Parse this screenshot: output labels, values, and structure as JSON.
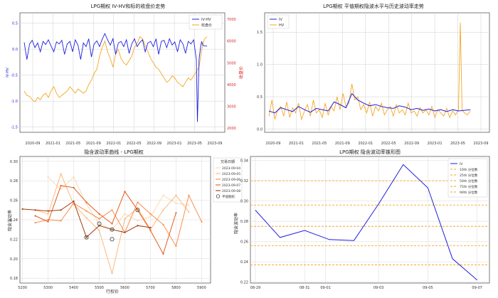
{
  "figure": {
    "background": "#ffffff"
  },
  "chart_data": [
    {
      "type": "line",
      "title": "LPG期权 IV-HV和标的收盘价走势",
      "xlabel": "",
      "ylabel": "IV-HV",
      "y2label": "收盘价",
      "x_ticks": [
        "2020-09",
        "2021-01",
        "2021-05",
        "2021-09",
        "2022-01",
        "2022-05",
        "2022-09",
        "2023-01",
        "2023-05",
        "2023-09"
      ],
      "y_ticks": [
        "-1.5",
        "-1.0",
        "-0.5",
        "0.0",
        "0.5"
      ],
      "y2_ticks": [
        "2000",
        "3000",
        "4000",
        "5000",
        "6000",
        "7000"
      ],
      "ylim": [
        -1.6,
        0.7
      ],
      "y2lim": [
        1800,
        7300
      ],
      "x_range": [
        0,
        36.5
      ],
      "grid": true,
      "legend_position": "top-right",
      "series": [
        {
          "name": "IV-HV",
          "axis": "left",
          "color": "#1f1fe0",
          "x": [
            0.0,
            0.5,
            1.0,
            1.5,
            2.0,
            2.5,
            3.0,
            3.5,
            4.0,
            4.5,
            5.0,
            5.5,
            6.0,
            6.5,
            7.0,
            7.5,
            8.0,
            8.5,
            9.0,
            9.5,
            10.0,
            10.5,
            11.0,
            11.5,
            12.0,
            12.5,
            13.0,
            13.5,
            14.0,
            14.5,
            15.0,
            15.5,
            16.0,
            16.5,
            17.0,
            17.5,
            18.0,
            18.5,
            19.0,
            19.5,
            20.0,
            20.5,
            21.0,
            21.5,
            22.0,
            22.5,
            23.0,
            23.5,
            24.0,
            24.5,
            25.0,
            25.5,
            26.0,
            26.5,
            27.0,
            27.5,
            28.0,
            28.5,
            29.0,
            29.5,
            30.0,
            30.5,
            31.0,
            31.5,
            32.0,
            32.2,
            32.5,
            32.8,
            33.0,
            33.2,
            33.5,
            34.0
          ],
          "values": [
            0.13,
            -0.2,
            0.1,
            0.17,
            0.03,
            0.12,
            -0.05,
            0.15,
            0.09,
            0.18,
            0.06,
            -0.05,
            0.14,
            0.1,
            0.17,
            -0.1,
            0.1,
            0.15,
            -0.05,
            0.18,
            0.08,
            -0.2,
            0.12,
            0.05,
            0.2,
            -0.15,
            0.1,
            0.16,
            0.05,
            0.19,
            0.3,
            0.18,
            0.08,
            0.2,
            -0.1,
            0.12,
            0.15,
            0.05,
            0.18,
            -0.08,
            0.1,
            0.2,
            0.05,
            0.13,
            0.18,
            -0.05,
            0.12,
            0.15,
            0.05,
            0.2,
            -0.1,
            0.15,
            0.17,
            0.03,
            0.2,
            0.08,
            0.14,
            -0.05,
            0.18,
            0.1,
            -0.08,
            0.15,
            0.1,
            0.18,
            -0.2,
            -1.4,
            -0.2,
            0.05,
            0.15,
            0.08,
            0.06,
            0.06
          ]
        },
        {
          "name": "收盘价",
          "axis": "right",
          "color": "#f5a623",
          "x": [
            0.0,
            0.5,
            1.0,
            1.5,
            2.0,
            2.5,
            3.0,
            3.5,
            4.0,
            4.5,
            5.0,
            5.5,
            6.0,
            6.5,
            7.0,
            7.5,
            8.0,
            8.5,
            9.0,
            9.5,
            10.0,
            10.5,
            11.0,
            11.5,
            12.0,
            12.5,
            13.0,
            13.5,
            14.0,
            14.5,
            15.0,
            15.5,
            16.0,
            16.5,
            17.0,
            17.5,
            18.0,
            18.5,
            19.0,
            19.5,
            20.0,
            20.5,
            21.0,
            21.5,
            22.0,
            22.5,
            23.0,
            23.5,
            24.0,
            24.5,
            25.0,
            25.5,
            26.0,
            26.5,
            27.0,
            27.5,
            28.0,
            28.5,
            29.0,
            29.5,
            30.0,
            30.5,
            31.0,
            31.5,
            32.0,
            32.5,
            33.0,
            33.5,
            34.0
          ],
          "values": [
            3700,
            3500,
            3450,
            3300,
            3200,
            3400,
            3300,
            3500,
            3600,
            3400,
            3700,
            3900,
            3600,
            3400,
            3500,
            3600,
            3700,
            3900,
            3750,
            3600,
            3800,
            3700,
            3600,
            3700,
            4000,
            4200,
            4500,
            4700,
            5300,
            5700,
            6000,
            5500,
            5200,
            4800,
            5400,
            5600,
            5200,
            5000,
            4900,
            5100,
            5300,
            5700,
            5900,
            6200,
            6100,
            5800,
            5500,
            5200,
            5000,
            4800,
            4700,
            4500,
            4300,
            4100,
            4200,
            4400,
            4300,
            4100,
            4000,
            3900,
            4100,
            4300,
            4200,
            4400,
            4600,
            4800,
            5600,
            6100,
            6200
          ]
        }
      ]
    },
    {
      "type": "line",
      "title": "LPG期权 平值期权隐波水平与历史波动率走势",
      "xlabel": "",
      "ylabel": "",
      "x_ticks": [
        "2020-09",
        "2021-01",
        "2021-05",
        "2021-09",
        "2022-01",
        "2022-05",
        "2022-09",
        "2023-01",
        "2023-05",
        "2023-09"
      ],
      "y_ticks": [
        "0.0",
        "0.5",
        "1.0",
        "1.5"
      ],
      "ylim": [
        -0.05,
        1.8
      ],
      "x_range": [
        0,
        36.5
      ],
      "grid": true,
      "legend_position": "top-left",
      "series": [
        {
          "name": "IV",
          "color": "#1f1fe0",
          "x": [
            0,
            1,
            2,
            3,
            4,
            5,
            6,
            7,
            8,
            9,
            10,
            11,
            12,
            13,
            14,
            15,
            16,
            17,
            18,
            19,
            20,
            21,
            22,
            23,
            24,
            25,
            26,
            27,
            28,
            29,
            30,
            31,
            32,
            33,
            34
          ],
          "values": [
            0.28,
            0.25,
            0.33,
            0.3,
            0.27,
            0.35,
            0.3,
            0.26,
            0.32,
            0.3,
            0.28,
            0.42,
            0.38,
            0.33,
            0.55,
            0.45,
            0.4,
            0.36,
            0.38,
            0.35,
            0.33,
            0.32,
            0.36,
            0.34,
            0.3,
            0.32,
            0.29,
            0.31,
            0.28,
            0.3,
            0.27,
            0.3,
            0.28,
            0.29,
            0.3
          ]
        },
        {
          "name": "HV",
          "color": "#f5a623",
          "x": [
            0,
            0.5,
            1,
            1.5,
            2,
            2.5,
            3,
            3.5,
            4,
            4.5,
            5,
            5.5,
            6,
            6.5,
            7,
            7.5,
            8,
            8.5,
            9,
            9.5,
            10,
            10.5,
            11,
            11.5,
            12,
            12.5,
            13,
            13.5,
            14,
            14.5,
            15,
            15.5,
            16,
            16.5,
            17,
            17.5,
            18,
            18.5,
            19,
            19.5,
            20,
            20.5,
            21,
            21.5,
            22,
            22.5,
            23,
            23.5,
            24,
            24.5,
            25,
            25.5,
            26,
            26.5,
            27,
            27.5,
            28,
            28.5,
            29,
            29.5,
            30,
            30.5,
            31,
            31.5,
            32,
            32.3,
            32.6,
            33,
            33.5,
            34
          ],
          "values": [
            0.2,
            0.45,
            0.15,
            0.3,
            0.35,
            0.2,
            0.42,
            0.18,
            0.33,
            0.25,
            0.4,
            0.15,
            0.28,
            0.38,
            0.2,
            0.45,
            0.25,
            0.3,
            0.18,
            0.4,
            0.22,
            0.35,
            0.28,
            0.5,
            0.3,
            0.55,
            0.35,
            0.4,
            0.7,
            0.45,
            0.5,
            0.3,
            0.38,
            0.25,
            0.42,
            0.2,
            0.35,
            0.28,
            0.4,
            0.22,
            0.3,
            0.35,
            0.2,
            0.38,
            0.25,
            0.3,
            0.22,
            0.4,
            0.25,
            0.28,
            0.2,
            0.33,
            0.25,
            0.3,
            0.22,
            0.35,
            0.18,
            0.3,
            0.25,
            0.2,
            0.32,
            0.18,
            0.28,
            0.22,
            0.3,
            1.65,
            0.3,
            0.25,
            0.22,
            0.28
          ]
        }
      ]
    },
    {
      "type": "line",
      "title": "隐含波动率曲线 - LPG期权",
      "xlabel": "行权价",
      "ylabel": "隐含波动率",
      "x_ticks": [
        "5200",
        "5300",
        "5400",
        "5500",
        "5600",
        "5700",
        "5800",
        "5900"
      ],
      "y_ticks": [
        "0.18",
        "0.20",
        "0.22",
        "0.24",
        "0.26",
        "0.28",
        "0.30"
      ],
      "xlim": [
        5190,
        5935
      ],
      "ylim": [
        0.175,
        0.305
      ],
      "grid": true,
      "legend_title": "交易日期",
      "legend_position": "upper-right outside",
      "atm_label": "平值期权",
      "series": [
        {
          "name": "2023-09-04",
          "color": "#fdd9b5",
          "x": [
            5300,
            5350,
            5400,
            5450,
            5500,
            5550,
            5600,
            5650,
            5700,
            5750,
            5800,
            5850
          ],
          "values": [
            0.284,
            0.271,
            0.284,
            0.256,
            0.236,
            0.23,
            0.246,
            0.239,
            0.243,
            0.265,
            0.257,
            0.255
          ]
        },
        {
          "name": "2023-09-05",
          "color": "#fdb97d",
          "x": [
            5250,
            5300,
            5350,
            5400,
            5450,
            5500,
            5550,
            5600,
            5650,
            5700,
            5750,
            5800,
            5850
          ],
          "values": [
            0.25,
            0.246,
            0.287,
            0.256,
            0.242,
            0.229,
            0.185,
            0.241,
            0.252,
            0.23,
            0.25,
            0.265,
            0.248
          ]
        },
        {
          "name": "2023-09-06",
          "color": "#f98d4a",
          "x": [
            5250,
            5300,
            5350,
            5400,
            5450,
            5500,
            5550,
            5600,
            5650,
            5700,
            5750,
            5800,
            5850,
            5900
          ],
          "values": [
            0.237,
            0.24,
            0.239,
            0.257,
            0.249,
            0.241,
            0.25,
            0.227,
            0.258,
            0.246,
            0.235,
            0.213,
            0.265,
            0.238
          ]
        },
        {
          "name": "2023-09-07",
          "color": "#e35c1c",
          "x": [
            5250,
            5300,
            5350,
            5400,
            5450,
            5500,
            5550,
            5600,
            5650,
            5700,
            5750,
            5800
          ],
          "values": [
            0.244,
            0.238,
            0.275,
            0.273,
            0.258,
            0.246,
            0.236,
            0.269,
            0.25,
            0.229,
            0.205,
            0.247
          ]
        },
        {
          "name": "2023-09-08",
          "color": "#a63a0a",
          "x": [
            5200,
            5250,
            5300,
            5350,
            5400,
            5450,
            5500,
            5550,
            5600,
            5650,
            5700
          ],
          "values": [
            0.251,
            0.25,
            0.249,
            0.25,
            0.259,
            0.222,
            0.234,
            0.23,
            0.227,
            0.234,
            0.232
          ]
        }
      ],
      "atm_points": [
        {
          "x": 5450,
          "y": 0.222
        },
        {
          "x": 5500,
          "y": 0.236
        },
        {
          "x": 5550,
          "y": 0.23
        },
        {
          "x": 5550,
          "y": 0.22
        },
        {
          "x": 5650,
          "y": 0.25
        }
      ]
    },
    {
      "type": "line",
      "title": "LPG期权 隐含波动率锥形图",
      "xlabel": "",
      "ylabel": "隐含波动率",
      "x_ticks": [
        "08-29",
        "08-31",
        "09-01",
        "09-03",
        "09-05",
        "09-07"
      ],
      "x_tick_pos": [
        0,
        2,
        2.85,
        5,
        7,
        9
      ],
      "y_ticks": [
        "0.22",
        "0.24",
        "0.26",
        "0.28",
        "0.30",
        "0.32",
        "0.34"
      ],
      "xlim": [
        -0.2,
        9.5
      ],
      "ylim": [
        0.219,
        0.344
      ],
      "grid": true,
      "legend_position": "top-right",
      "series": [
        {
          "name": "IV",
          "color": "#1f1fe0",
          "x": [
            0,
            1,
            2,
            3,
            4,
            5,
            6,
            7,
            8,
            9
          ],
          "values": [
            0.291,
            0.264,
            0.271,
            0.262,
            0.261,
            0.297,
            0.336,
            0.313,
            0.243,
            0.222
          ]
        }
      ],
      "percentiles": [
        {
          "name": "10th 分位数",
          "value": 0.237,
          "color": "#f5a623"
        },
        {
          "name": "25th 分位数",
          "value": 0.256,
          "color": "#f5a623"
        },
        {
          "name": "50th 分位数",
          "value": 0.275,
          "color": "#f5a623"
        },
        {
          "name": "75th 分位数",
          "value": 0.296,
          "color": "#f5a623"
        },
        {
          "name": "90th 分位数",
          "value": 0.32,
          "color": "#f5a623"
        }
      ]
    }
  ]
}
